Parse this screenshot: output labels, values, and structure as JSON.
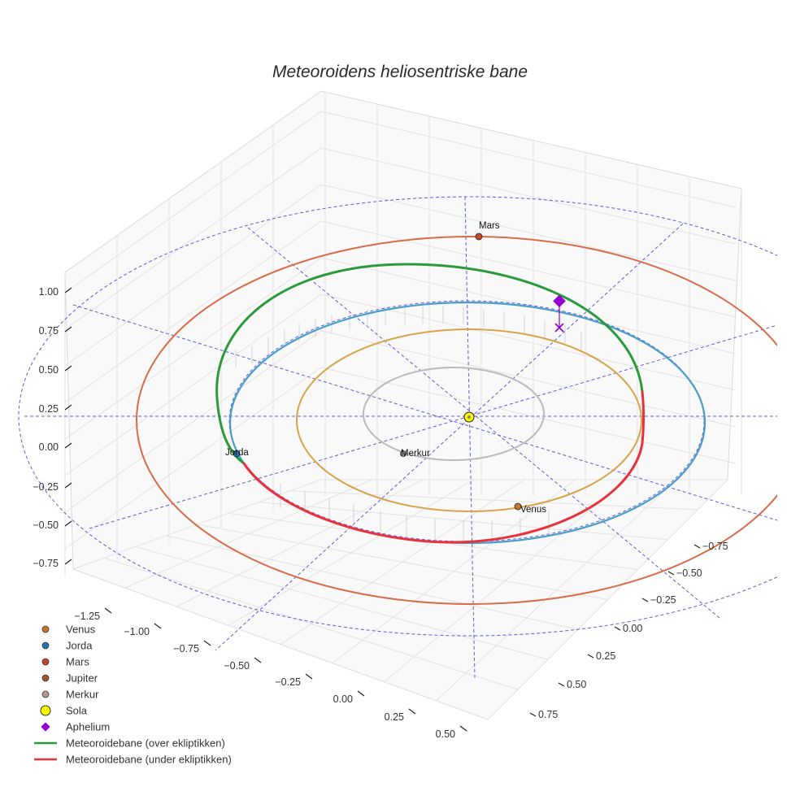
{
  "chart_data": {
    "type": "scatter",
    "title": "Meteoroidens heliosentriske bane",
    "projection": "3d",
    "axes": {
      "x": {
        "ticks": [
          "−1.25",
          "−1.00",
          "−0.75",
          "−0.50",
          "−0.25",
          "0.00",
          "0.25",
          "0.50"
        ]
      },
      "y": {
        "ticks": [
          "−0.75",
          "−0.50",
          "−0.25",
          "0.00",
          "0.25",
          "0.50",
          "0.75"
        ]
      },
      "z": {
        "ticks": [
          "−0.75",
          "−0.50",
          "−0.25",
          "0.00",
          "0.25",
          "0.50",
          "0.75",
          "1.00"
        ]
      }
    },
    "grid": true,
    "legend_position": "bottom-left",
    "bodies": [
      {
        "name": "Venus",
        "label": "Venus",
        "color": "#c8772a"
      },
      {
        "name": "Jorda",
        "label": "Jorda",
        "color": "#1f77b4"
      },
      {
        "name": "Mars",
        "label": "Mars",
        "color": "#c8472a"
      },
      {
        "name": "Jupiter",
        "label": "",
        "color": "#a0522d"
      },
      {
        "name": "Merkur",
        "label": "Merkur",
        "color": "#b39a8f"
      },
      {
        "name": "Sola",
        "label": "",
        "color": "#ffff00"
      },
      {
        "name": "Aphelium",
        "label": "",
        "color": "#9400d3"
      }
    ],
    "orbits": [
      {
        "name": "Merkur-bane",
        "color": "#bbbbbb"
      },
      {
        "name": "Venus-bane",
        "color": "#d8a34a"
      },
      {
        "name": "Jorda-bane",
        "color": "#4a9cc9"
      },
      {
        "name": "Mars-bane",
        "color": "#d96a4a"
      }
    ],
    "series": [
      {
        "name": "Meteoroidebane (over ekliptikken)",
        "color": "#2a9a3a"
      },
      {
        "name": "Meteoroidebane (under ekliptikken)",
        "color": "#e8313b"
      }
    ],
    "legend": [
      {
        "label": "Venus",
        "marker": "circle",
        "color": "#c8772a"
      },
      {
        "label": "Jorda",
        "marker": "circle",
        "color": "#1f77b4"
      },
      {
        "label": "Mars",
        "marker": "circle",
        "color": "#c8472a"
      },
      {
        "label": "Jupiter",
        "marker": "circle",
        "color": "#a0522d"
      },
      {
        "label": "Merkur",
        "marker": "circle",
        "color": "#b39a8f"
      },
      {
        "label": "Sola",
        "marker": "sun",
        "color": "#ffff00"
      },
      {
        "label": "Aphelium",
        "marker": "diamond",
        "color": "#9400d3"
      },
      {
        "label": "Meteoroidebane (over ekliptikken)",
        "marker": "line",
        "color": "#2a9a3a"
      },
      {
        "label": "Meteoroidebane (under ekliptikken)",
        "marker": "line",
        "color": "#e8313b"
      }
    ]
  }
}
